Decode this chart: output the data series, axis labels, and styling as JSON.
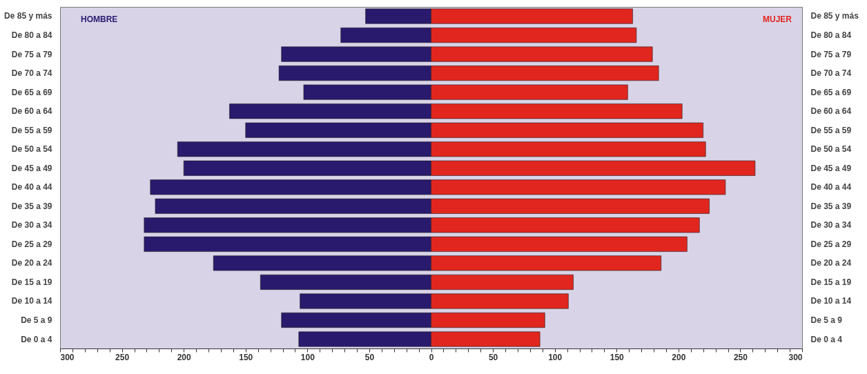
{
  "chart_data": {
    "type": "bar",
    "orientation": "horizontal",
    "stacked": true,
    "grid": false,
    "categories": [
      "De 85 y más",
      "De 80 a 84",
      "De 75 a 79",
      "De 70 a 74",
      "De 65 a 69",
      "De 60 a 64",
      "De 55 a 59",
      "De 50 a 54",
      "De 45 a 49",
      "De 40 a 44",
      "De 35 a 39",
      "De 30 a 34",
      "De 25 a 29",
      "De 20 a 24",
      "De 15 a 19",
      "De 10 a 14",
      "De 5 a 9",
      "De 0 a 4"
    ],
    "series": [
      {
        "name": "HOMBRE",
        "color": "#2a1a6e",
        "values": [
          -53,
          -73,
          -121,
          -123,
          -103,
          -163,
          -150,
          -205,
          -200,
          -227,
          -223,
          -232,
          -232,
          -176,
          -138,
          -106,
          -121,
          -107
        ]
      },
      {
        "name": "MUJER",
        "color": "#e0261e",
        "values": [
          163,
          166,
          179,
          184,
          159,
          203,
          220,
          222,
          262,
          238,
          225,
          217,
          207,
          186,
          115,
          111,
          92,
          88
        ]
      }
    ],
    "xlim": [
      -300,
      300
    ],
    "xticks": [
      {
        "value": -300,
        "label": "300"
      },
      {
        "value": -290,
        "label": null
      },
      {
        "value": -280,
        "label": null
      },
      {
        "value": -270,
        "label": null
      },
      {
        "value": -260,
        "label": null
      },
      {
        "value": -250,
        "label": "250"
      },
      {
        "value": -240,
        "label": null
      },
      {
        "value": -230,
        "label": null
      },
      {
        "value": -220,
        "label": null
      },
      {
        "value": -210,
        "label": null
      },
      {
        "value": -200,
        "label": "200"
      },
      {
        "value": -190,
        "label": null
      },
      {
        "value": -180,
        "label": null
      },
      {
        "value": -170,
        "label": null
      },
      {
        "value": -160,
        "label": null
      },
      {
        "value": -150,
        "label": "150"
      },
      {
        "value": -140,
        "label": null
      },
      {
        "value": -130,
        "label": null
      },
      {
        "value": -120,
        "label": null
      },
      {
        "value": -110,
        "label": null
      },
      {
        "value": -100,
        "label": "100"
      },
      {
        "value": -90,
        "label": null
      },
      {
        "value": -80,
        "label": null
      },
      {
        "value": -70,
        "label": null
      },
      {
        "value": -60,
        "label": null
      },
      {
        "value": -50,
        "label": "50"
      },
      {
        "value": -40,
        "label": null
      },
      {
        "value": -30,
        "label": null
      },
      {
        "value": -20,
        "label": null
      },
      {
        "value": -10,
        "label": null
      },
      0,
      {
        "value": 10,
        "label": null
      },
      {
        "value": 20,
        "label": null
      },
      {
        "value": 30,
        "label": null
      },
      {
        "value": 40,
        "label": null
      },
      50,
      {
        "value": 60,
        "label": null
      },
      {
        "value": 70,
        "label": null
      },
      {
        "value": 80,
        "label": null
      },
      {
        "value": 90,
        "label": null
      },
      100,
      {
        "value": 110,
        "label": null
      },
      {
        "value": 120,
        "label": null
      },
      {
        "value": 130,
        "label": null
      },
      {
        "value": 140,
        "label": null
      },
      150,
      {
        "value": 160,
        "label": null
      },
      {
        "value": 170,
        "label": null
      },
      {
        "value": 180,
        "label": null
      },
      {
        "value": 190,
        "label": null
      },
      200,
      {
        "value": 210,
        "label": null
      },
      {
        "value": 220,
        "label": null
      },
      {
        "value": 230,
        "label": null
      },
      {
        "value": 240,
        "label": null
      },
      250,
      {
        "value": 260,
        "label": null
      },
      {
        "value": 270,
        "label": null
      },
      {
        "value": 280,
        "label": null
      },
      {
        "value": 290,
        "label": null
      },
      300
    ]
  }
}
